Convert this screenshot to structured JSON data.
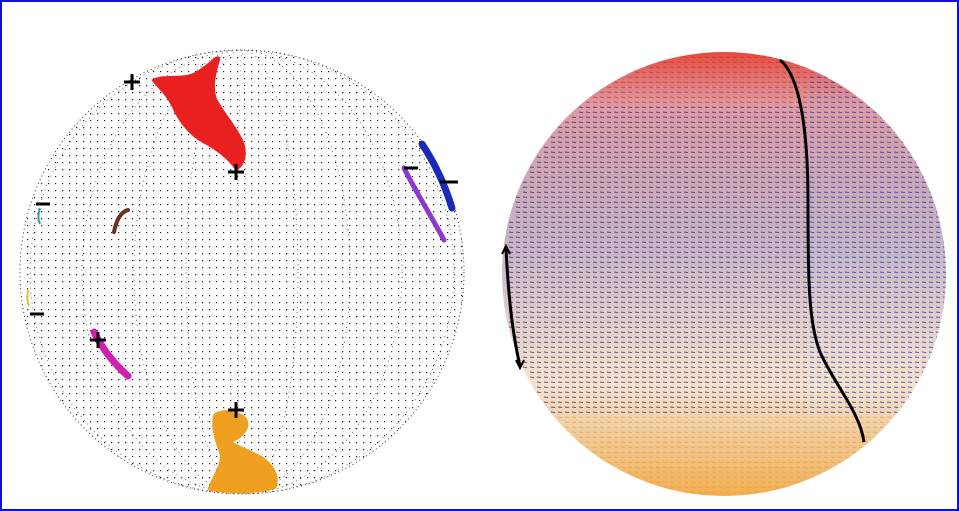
{
  "figure": {
    "panels": [
      {
        "id": "left-stereonet",
        "style": "dot-grid",
        "colors": {
          "grid": "#222222",
          "markers": "#000000"
        },
        "regions": [
          {
            "name": "red-region",
            "color": "#e82020"
          },
          {
            "name": "blue-arc",
            "color": "#1a2ab8"
          },
          {
            "name": "purple-arc",
            "color": "#8a3ad0"
          },
          {
            "name": "brown-hook",
            "color": "#6a3020"
          },
          {
            "name": "magenta-streak",
            "color": "#d020b0"
          },
          {
            "name": "orange-region",
            "color": "#f0a020"
          },
          {
            "name": "teal-mark",
            "color": "#30a0a0"
          },
          {
            "name": "yellow-mark",
            "color": "#e0c020"
          }
        ]
      },
      {
        "id": "right-stereonet",
        "style": "colored-vector-field",
        "colors": {
          "top": "#e02a1a",
          "middle": "#3a1a5a",
          "right-edge": "#1a2a9a",
          "bottom": "#f0a030",
          "boundary-curve": "#000000"
        }
      }
    ]
  }
}
